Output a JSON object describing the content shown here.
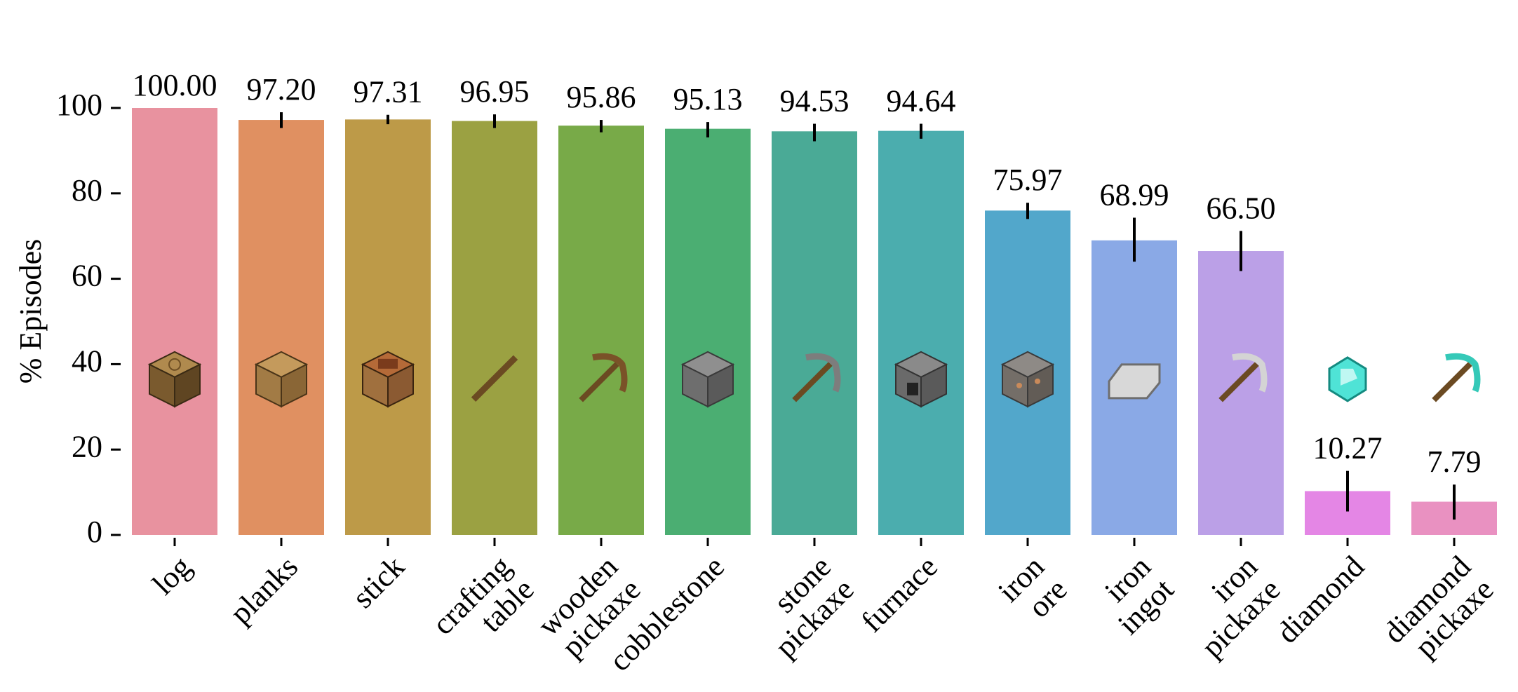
{
  "chart_data": {
    "type": "bar",
    "title": "",
    "xlabel": "",
    "ylabel": "% Episodes",
    "ylim": [
      0,
      100
    ],
    "yticks": [
      0,
      20,
      40,
      60,
      80,
      100
    ],
    "grid": false,
    "categories": [
      [
        "log"
      ],
      [
        "planks"
      ],
      [
        "stick"
      ],
      [
        "crafting",
        "table"
      ],
      [
        "wooden",
        "pickaxe"
      ],
      [
        "cobblestone"
      ],
      [
        "stone",
        "pickaxe"
      ],
      [
        "furnace"
      ],
      [
        "iron",
        "ore"
      ],
      [
        "iron",
        "ingot"
      ],
      [
        "iron",
        "pickaxe"
      ],
      [
        "diamond"
      ],
      [
        "diamond",
        "pickaxe"
      ]
    ],
    "values": [
      100.0,
      97.2,
      97.31,
      96.95,
      95.86,
      95.13,
      94.53,
      94.64,
      75.97,
      68.99,
      66.5,
      10.27,
      7.79
    ],
    "value_labels": [
      "100.00",
      "97.20",
      "97.31",
      "96.95",
      "95.86",
      "95.13",
      "94.53",
      "94.64",
      "75.97",
      "68.99",
      "66.50",
      "10.27",
      "7.79"
    ],
    "error_low": [
      100.0,
      95.3,
      96.2,
      95.3,
      94.3,
      93.1,
      92.2,
      92.8,
      74.0,
      64.0,
      61.8,
      5.5,
      3.6
    ],
    "error_high": [
      100.0,
      99.0,
      98.4,
      98.5,
      97.2,
      96.7,
      96.3,
      96.3,
      77.8,
      74.3,
      71.2,
      15.0,
      11.8
    ],
    "colors": [
      "#e8929f",
      "#e09061",
      "#bd9a48",
      "#9ba142",
      "#78aa48",
      "#4bae72",
      "#4aaa96",
      "#4badae",
      "#52a7cb",
      "#8aa9e6",
      "#bba0e7",
      "#e486e5",
      "#e991c1"
    ],
    "icons": [
      "oak-log-icon",
      "oak-planks-icon",
      "crafting-table-icon",
      "stick-icon",
      "wooden-pickaxe-icon",
      "cobblestone-icon",
      "stone-pickaxe-icon",
      "furnace-icon",
      "iron-ore-icon",
      "iron-ingot-icon",
      "iron-pickaxe-icon",
      "diamond-icon",
      "diamond-pickaxe-icon"
    ],
    "icon_level": 35
  }
}
